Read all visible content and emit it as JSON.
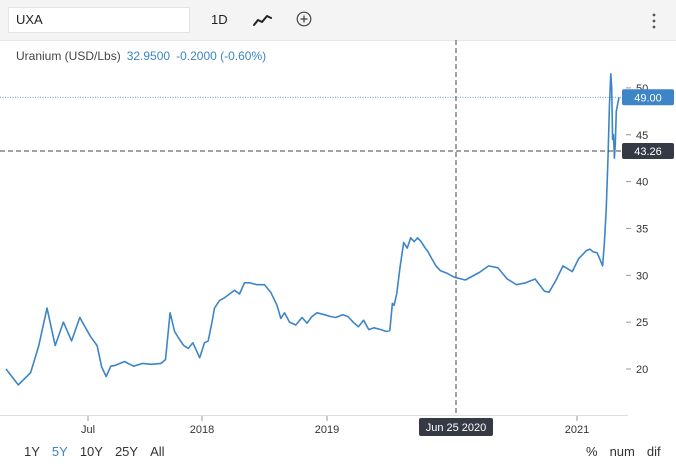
{
  "toolbar": {
    "symbol": "UXA",
    "interval": "1D",
    "chart_type_icon": "line-chart-icon",
    "add_icon": "plus-circle-icon",
    "menu_icon": "vertical-ellipsis-icon"
  },
  "legend": {
    "name": "Uranium (USD/Lbs)",
    "price": "32.9500",
    "change": "-0.2000 (-0.60%)"
  },
  "crosshair": {
    "date": "Jun 25 2020",
    "price": "43.26"
  },
  "last_price": "49.00",
  "range_buttons": [
    "1Y",
    "5Y",
    "10Y",
    "25Y",
    "All"
  ],
  "active_range": "5Y",
  "scale_buttons": [
    "%",
    "num",
    "dif"
  ],
  "colors": {
    "line": "#3d85c6",
    "crosshair": "#444444",
    "badge_dark": "#363a45"
  },
  "chart_data": {
    "type": "line",
    "x_tick_labels": [
      "Jul",
      "2018",
      "2019",
      "2021"
    ],
    "y_tick_labels": [
      "20",
      "25",
      "30",
      "35",
      "40",
      "45",
      "50"
    ],
    "ylim": [
      15,
      52
    ],
    "series": [
      {
        "values": [
          [
            2017.3,
            20.0
          ],
          [
            2017.33,
            18.3
          ],
          [
            2017.36,
            19.6
          ],
          [
            2017.38,
            22.5
          ],
          [
            2017.4,
            26.5
          ],
          [
            2017.42,
            22.5
          ],
          [
            2017.44,
            25.0
          ],
          [
            2017.46,
            23.0
          ],
          [
            2017.48,
            25.5
          ],
          [
            2017.51,
            23.5
          ],
          [
            2017.54,
            22.5
          ],
          [
            2017.56,
            20.2
          ],
          [
            2017.58,
            19.2
          ],
          [
            2017.6,
            20.3
          ],
          [
            2017.62,
            20.4
          ],
          [
            2017.66,
            20.8
          ],
          [
            2017.7,
            20.3
          ],
          [
            2017.74,
            20.6
          ],
          [
            2017.78,
            20.5
          ],
          [
            2017.82,
            20.6
          ],
          [
            2017.84,
            21.0
          ],
          [
            2017.86,
            26.0
          ],
          [
            2017.88,
            24.0
          ],
          [
            2017.9,
            23.2
          ],
          [
            2017.92,
            22.5
          ],
          [
            2017.94,
            22.2
          ],
          [
            2017.96,
            22.8
          ],
          [
            2017.99,
            21.2
          ],
          [
            2018.02,
            22.8
          ],
          [
            2018.05,
            23.0
          ],
          [
            2018.08,
            25.0
          ],
          [
            2018.1,
            26.5
          ],
          [
            2018.14,
            27.3
          ],
          [
            2018.18,
            27.6
          ],
          [
            2018.22,
            28.0
          ],
          [
            2018.26,
            28.4
          ],
          [
            2018.3,
            28.0
          ],
          [
            2018.34,
            29.2
          ],
          [
            2018.38,
            29.2
          ],
          [
            2018.44,
            29.0
          ],
          [
            2018.5,
            29.0
          ],
          [
            2018.55,
            28.2
          ],
          [
            2018.6,
            26.8
          ],
          [
            2018.63,
            25.4
          ],
          [
            2018.66,
            26.0
          ],
          [
            2018.7,
            25.0
          ],
          [
            2018.75,
            24.7
          ],
          [
            2018.8,
            25.5
          ],
          [
            2018.84,
            24.9
          ],
          [
            2018.88,
            25.6
          ],
          [
            2018.92,
            26.0
          ],
          [
            2018.98,
            25.8
          ],
          [
            2019.04,
            25.6
          ],
          [
            2019.1,
            25.5
          ],
          [
            2019.18,
            25.8
          ],
          [
            2019.24,
            25.6
          ],
          [
            2019.3,
            25.0
          ],
          [
            2019.36,
            24.5
          ],
          [
            2019.42,
            25.2
          ],
          [
            2019.48,
            24.2
          ],
          [
            2019.54,
            24.4
          ],
          [
            2019.62,
            24.2
          ],
          [
            2019.68,
            24.0
          ],
          [
            2019.72,
            24.1
          ],
          [
            2019.75,
            27.0
          ],
          [
            2019.77,
            26.8
          ],
          [
            2019.8,
            28.0
          ],
          [
            2019.84,
            31.0
          ],
          [
            2019.88,
            33.5
          ],
          [
            2019.92,
            32.9
          ],
          [
            2019.96,
            34.0
          ],
          [
            2020.0,
            33.6
          ],
          [
            2020.04,
            34.0
          ],
          [
            2020.08,
            33.6
          ],
          [
            2020.12,
            33.0
          ],
          [
            2020.16,
            32.5
          ],
          [
            2020.2,
            31.8
          ],
          [
            2020.25,
            31.0
          ],
          [
            2020.3,
            30.5
          ],
          [
            2020.38,
            30.2
          ],
          [
            2020.46,
            29.8
          ],
          [
            2020.52,
            29.5
          ],
          [
            2020.58,
            30.3
          ],
          [
            2020.62,
            31.0
          ],
          [
            2020.66,
            30.8
          ],
          [
            2020.7,
            29.6
          ],
          [
            2020.74,
            29.0
          ],
          [
            2020.78,
            29.2
          ],
          [
            2020.82,
            29.6
          ],
          [
            2020.86,
            28.3
          ],
          [
            2020.88,
            28.2
          ],
          [
            2020.91,
            29.5
          ],
          [
            2020.94,
            31.0
          ],
          [
            2020.98,
            30.4
          ],
          [
            2021.02,
            31.8
          ],
          [
            2021.06,
            32.2
          ],
          [
            2021.1,
            32.6
          ],
          [
            2021.14,
            32.8
          ],
          [
            2021.18,
            32.5
          ],
          [
            2021.22,
            32.4
          ],
          [
            2021.26,
            31.5
          ],
          [
            2021.28,
            31.0
          ],
          [
            2021.3,
            33.5
          ],
          [
            2021.32,
            37.0
          ],
          [
            2021.34,
            42.5
          ],
          [
            2021.355,
            48.0
          ],
          [
            2021.37,
            51.5
          ],
          [
            2021.38,
            50.0
          ],
          [
            2021.39,
            44.5
          ],
          [
            2021.4,
            45.0
          ],
          [
            2021.41,
            42.5
          ],
          [
            2021.42,
            44.0
          ],
          [
            2021.43,
            47.5
          ],
          [
            2021.44,
            48.0
          ],
          [
            2021.46,
            49.0
          ]
        ]
      }
    ]
  }
}
